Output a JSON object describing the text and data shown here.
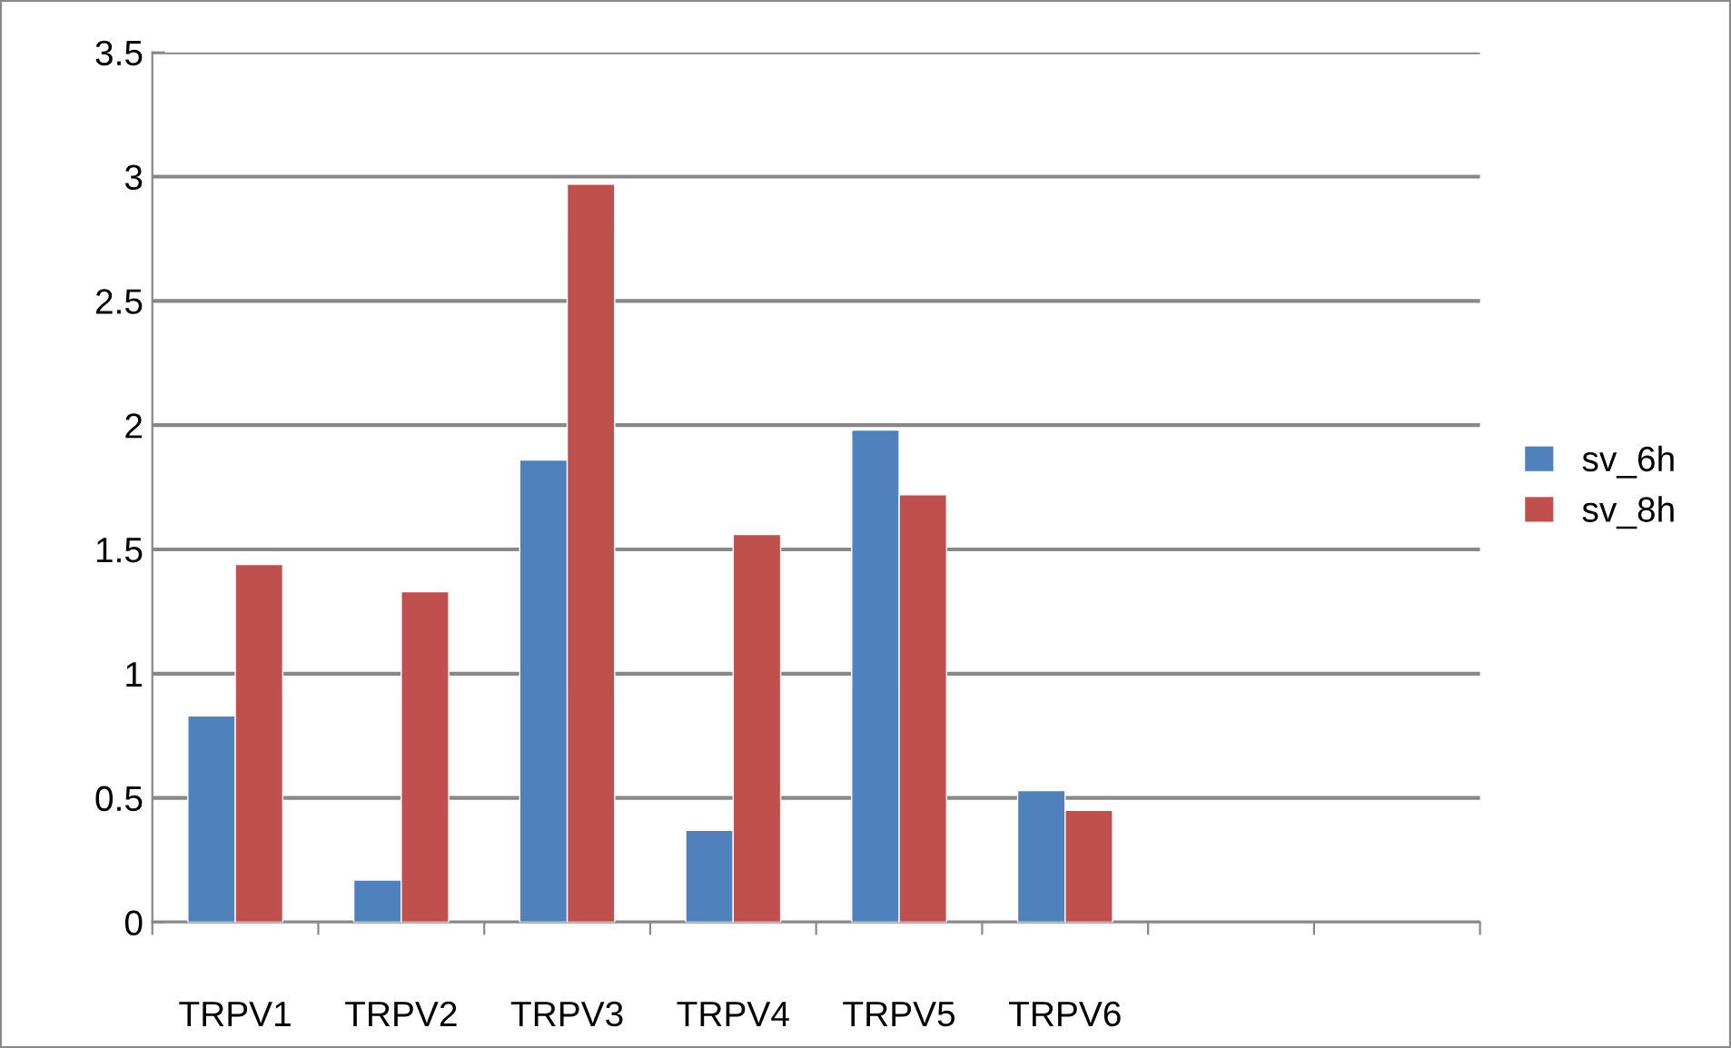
{
  "chart_data": {
    "type": "bar",
    "categories": [
      "TRPV1",
      "TRPV2",
      "TRPV3",
      "TRPV4",
      "TRPV5",
      "TRPV6",
      null,
      null
    ],
    "series": [
      {
        "name": "sv_6h",
        "color": "#4f81bd",
        "values": [
          0.83,
          0.17,
          1.86,
          0.37,
          1.98,
          0.53,
          null,
          null
        ]
      },
      {
        "name": "sv_8h",
        "color": "#c0504d",
        "values": [
          1.44,
          1.33,
          2.97,
          1.56,
          1.72,
          0.45,
          null,
          null
        ]
      }
    ],
    "ylim": [
      0,
      3.5
    ],
    "yticks": [
      0,
      0.5,
      1,
      1.5,
      2,
      2.5,
      3,
      3.5
    ],
    "grid": "y",
    "legend": "right"
  }
}
